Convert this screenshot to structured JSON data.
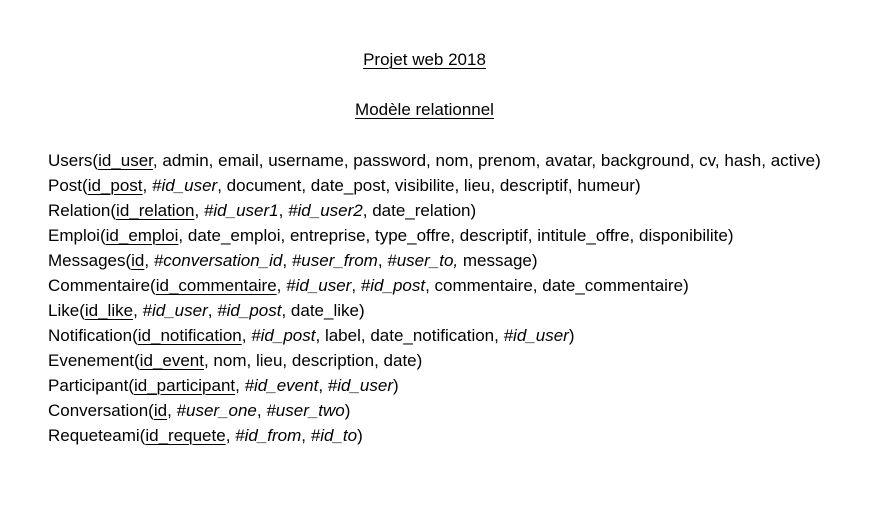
{
  "document": {
    "title": "Projet web 2018",
    "subtitle": "Modèle relationnel"
  },
  "relations": [
    {
      "name": "Users",
      "fields": [
        {
          "text": "id_user",
          "type": "pk"
        },
        {
          "text": "admin",
          "type": "plain"
        },
        {
          "text": "email",
          "type": "plain"
        },
        {
          "text": "username",
          "type": "plain"
        },
        {
          "text": "password",
          "type": "plain"
        },
        {
          "text": "nom",
          "type": "plain"
        },
        {
          "text": "prenom",
          "type": "plain"
        },
        {
          "text": "avatar",
          "type": "plain"
        },
        {
          "text": "background",
          "type": "plain"
        },
        {
          "text": "cv",
          "type": "plain"
        },
        {
          "text": "hash",
          "type": "plain"
        },
        {
          "text": "active",
          "type": "plain"
        }
      ]
    },
    {
      "name": "Post",
      "fields": [
        {
          "text": "id_post",
          "type": "pk"
        },
        {
          "text": "#id_user",
          "type": "fk"
        },
        {
          "text": "document",
          "type": "plain"
        },
        {
          "text": "date_post",
          "type": "plain"
        },
        {
          "text": "visibilite",
          "type": "plain"
        },
        {
          "text": "lieu",
          "type": "plain"
        },
        {
          "text": "descriptif",
          "type": "plain"
        },
        {
          "text": "humeur",
          "type": "plain"
        }
      ]
    },
    {
      "name": "Relation",
      "fields": [
        {
          "text": "id_relation",
          "type": "pk"
        },
        {
          "text": "#id_user1",
          "type": "fk"
        },
        {
          "text": "#id_user2",
          "type": "fk"
        },
        {
          "text": "date_relation",
          "type": "plain"
        }
      ]
    },
    {
      "name": "Emploi",
      "fields": [
        {
          "text": "id_emploi",
          "type": "pk"
        },
        {
          "text": "date_emploi",
          "type": "plain"
        },
        {
          "text": "entreprise",
          "type": "plain"
        },
        {
          "text": "type_offre",
          "type": "plain"
        },
        {
          "text": "descriptif",
          "type": "plain"
        },
        {
          "text": "intitule_offre",
          "type": "plain"
        },
        {
          "text": "disponibilite",
          "type": "plain"
        }
      ]
    },
    {
      "name": "Messages",
      "fields": [
        {
          "text": "id",
          "type": "pk"
        },
        {
          "text": "#conversation_id",
          "type": "fk"
        },
        {
          "text": "#user_from",
          "type": "fk"
        },
        {
          "text": "#user_to,",
          "type": "fk",
          "sep": " "
        },
        {
          "text": "message",
          "type": "plain"
        }
      ]
    },
    {
      "name": "Commentaire",
      "fields": [
        {
          "text": "id_commentaire",
          "type": "pk"
        },
        {
          "text": "#id_user",
          "type": "fk"
        },
        {
          "text": "#id_post",
          "type": "fk"
        },
        {
          "text": "commentaire",
          "type": "plain"
        },
        {
          "text": "date_commentaire",
          "type": "plain"
        }
      ]
    },
    {
      "name": "Like",
      "fields": [
        {
          "text": "id_like",
          "type": "pk"
        },
        {
          "text": "#id_user",
          "type": "fk"
        },
        {
          "text": "#id_post",
          "type": "fk"
        },
        {
          "text": "date_like",
          "type": "plain"
        }
      ]
    },
    {
      "name": "Notification",
      "fields": [
        {
          "text": "id_notification",
          "type": "pk"
        },
        {
          "text": "#id_post",
          "type": "fk"
        },
        {
          "text": "label",
          "type": "plain"
        },
        {
          "text": "date_notification",
          "type": "plain"
        },
        {
          "text": "#id_user",
          "type": "fk"
        }
      ]
    },
    {
      "name": "Evenement",
      "fields": [
        {
          "text": "id_event",
          "type": "pk"
        },
        {
          "text": "nom",
          "type": "plain"
        },
        {
          "text": "lieu",
          "type": "plain"
        },
        {
          "text": "description",
          "type": "plain"
        },
        {
          "text": "date",
          "type": "plain"
        }
      ]
    },
    {
      "name": "Participant",
      "fields": [
        {
          "text": "id_participant",
          "type": "pk"
        },
        {
          "text": "#id_event",
          "type": "fk"
        },
        {
          "text": "#id_user",
          "type": "fk"
        }
      ]
    },
    {
      "name": "Conversation",
      "fields": [
        {
          "text": "id",
          "type": "pk"
        },
        {
          "text": "#user_one",
          "type": "fk"
        },
        {
          "text": "#user_two",
          "type": "fk"
        }
      ]
    },
    {
      "name": "Requeteami",
      "fields": [
        {
          "text": "id_requete",
          "type": "pk"
        },
        {
          "text": "#id_from",
          "type": "fk"
        },
        {
          "text": "#id_to",
          "type": "fk"
        }
      ]
    }
  ]
}
